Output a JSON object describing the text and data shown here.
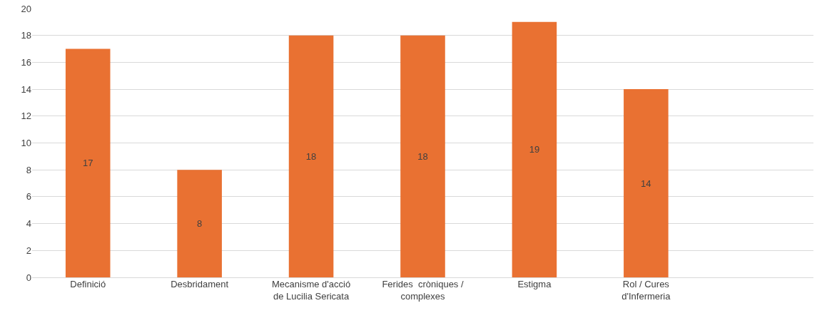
{
  "chart_data": {
    "type": "bar",
    "categories": [
      "Definició",
      "Desbridament",
      "Mecanisme d'acció\nde Lucilia Sericata",
      "Ferides  cròniques /\ncomplexes",
      "Estigma",
      "Rol / Cures\nd'Infermeria",
      null
    ],
    "values": [
      17,
      8,
      18,
      18,
      19,
      14,
      null
    ],
    "color": "#e97132",
    "ylim": [
      0,
      20
    ],
    "yticks": [
      0,
      2,
      4,
      6,
      8,
      10,
      12,
      14,
      16,
      18,
      20
    ],
    "grid": "y",
    "data_labels": true
  }
}
